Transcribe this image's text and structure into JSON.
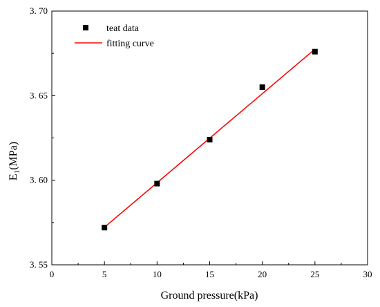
{
  "chart_data": {
    "type": "scatter",
    "xlabel": "Ground pressure(kPa)",
    "ylabel_main": "E",
    "ylabel_sub": "1",
    "ylabel_unit": "(MPa)",
    "xlim": [
      0,
      30
    ],
    "ylim": [
      3.55,
      3.7
    ],
    "x_ticks": [
      0,
      5,
      10,
      15,
      20,
      25,
      30
    ],
    "x_tick_labels": [
      "0",
      "5",
      "10",
      "15",
      "20",
      "25",
      "30"
    ],
    "y_ticks": [
      3.55,
      3.6,
      3.65,
      3.7
    ],
    "y_tick_labels": [
      "3. 55",
      "3. 60",
      "3. 65",
      "3. 70"
    ],
    "grid": false,
    "legend_position": "top-left",
    "series": [
      {
        "name": "teat data",
        "kind": "scatter",
        "marker": "square",
        "color": "#000000",
        "x": [
          5,
          10,
          15,
          20,
          25
        ],
        "y": [
          3.572,
          3.598,
          3.624,
          3.655,
          3.676
        ]
      },
      {
        "name": "fitting curve",
        "kind": "line",
        "color": "#ff0000",
        "x": [
          5,
          25
        ],
        "y": [
          3.5722,
          3.6775
        ]
      }
    ]
  }
}
